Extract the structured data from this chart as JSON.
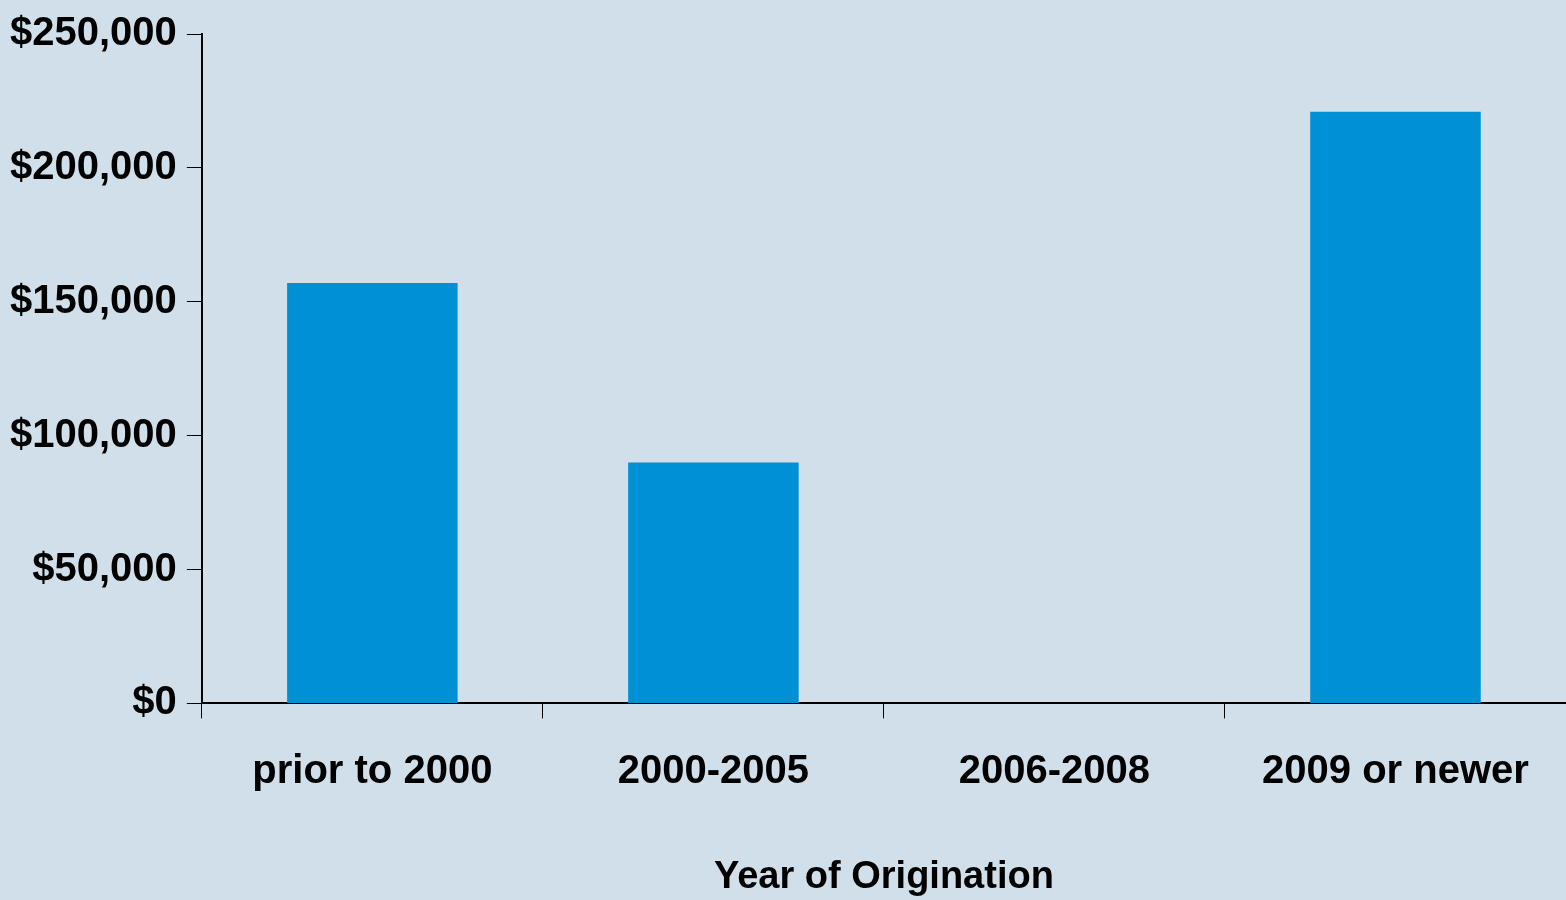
{
  "chart_data": {
    "type": "bar",
    "xlabel": "Year of Origination",
    "categories": [
      "prior to 2000",
      "2000-2005",
      "2006-2008",
      "2009 or newer"
    ],
    "values": [
      157000,
      90000,
      0,
      221000
    ],
    "color": "#0091d4",
    "ylim": [
      0,
      250000
    ],
    "yticks": [
      {
        "value": 0,
        "label": "$0"
      },
      {
        "value": 50000,
        "label": "$50,000"
      },
      {
        "value": 100000,
        "label": "$100,000"
      },
      {
        "value": 150000,
        "label": "$150,000"
      },
      {
        "value": 200000,
        "label": "$200,000"
      },
      {
        "value": 250000,
        "label": "$250,000"
      }
    ],
    "grid": false,
    "legend": false
  }
}
